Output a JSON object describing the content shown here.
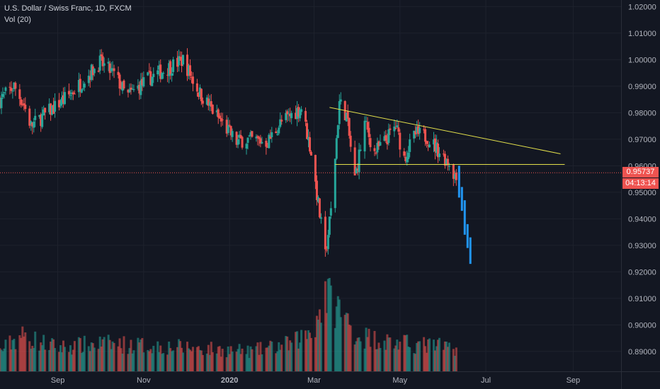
{
  "header": {
    "title": "U.S. Dollar / Swiss Franc, 1D, FXCM",
    "volume_label": "Vol (20)"
  },
  "price_tag": {
    "value": "0.95737",
    "countdown": "04:13:14",
    "color": "#ef5350"
  },
  "colors": {
    "background": "#131722",
    "grid": "#1e222d",
    "up": "#26a69a",
    "down": "#ef5350",
    "projection": "#2196f3",
    "trendline": "#e3e04b",
    "axis_text": "#b2b5be"
  },
  "chart_data": {
    "type": "candlestick",
    "title": "U.S. Dollar / Swiss Franc, 1D, FXCM",
    "ylim": [
      0.8825,
      1.0225
    ],
    "y_ticks": [
      "1.02000",
      "1.01000",
      "1.00000",
      "0.99000",
      "0.98000",
      "0.97000",
      "0.96000",
      "0.95000",
      "0.94000",
      "0.93000",
      "0.92000",
      "0.91000",
      "0.90000",
      "0.89000"
    ],
    "x_ticks": [
      {
        "label": "Sep",
        "date": "2019-09-01"
      },
      {
        "label": "Nov",
        "date": "2019-11-01"
      },
      {
        "label": "2020",
        "date": "2020-01-01"
      },
      {
        "label": "Mar",
        "date": "2020-03-01"
      },
      {
        "label": "May",
        "date": "2020-05-01"
      },
      {
        "label": "Jul",
        "date": "2020-07-01"
      },
      {
        "label": "Sep",
        "date": "2020-09-01"
      }
    ],
    "xlim": [
      "2019-07-22",
      "2020-10-05"
    ],
    "price_key_points": [
      {
        "date": "2019-07-22",
        "close": 0.985
      },
      {
        "date": "2019-08-01",
        "close": 0.99
      },
      {
        "date": "2019-08-08",
        "close": 0.983
      },
      {
        "date": "2019-08-13",
        "close": 0.975
      },
      {
        "date": "2019-08-27",
        "close": 0.981
      },
      {
        "date": "2019-09-10",
        "close": 0.987
      },
      {
        "date": "2019-10-01",
        "close": 0.999
      },
      {
        "date": "2019-10-12",
        "close": 0.994
      },
      {
        "date": "2019-10-20",
        "close": 0.986
      },
      {
        "date": "2019-11-05",
        "close": 0.993
      },
      {
        "date": "2019-11-29",
        "close": 1.0
      },
      {
        "date": "2019-12-10",
        "close": 0.988
      },
      {
        "date": "2019-12-24",
        "close": 0.978
      },
      {
        "date": "2020-01-06",
        "close": 0.969
      },
      {
        "date": "2020-01-12",
        "close": 0.97
      },
      {
        "date": "2020-01-28",
        "close": 0.969
      },
      {
        "date": "2020-02-06",
        "close": 0.976
      },
      {
        "date": "2020-02-21",
        "close": 0.982
      },
      {
        "date": "2020-02-28",
        "close": 0.965
      },
      {
        "date": "2020-03-09",
        "close": 0.926
      },
      {
        "date": "2020-03-13",
        "close": 0.943
      },
      {
        "date": "2020-03-19",
        "close": 0.984
      },
      {
        "date": "2020-03-24",
        "close": 0.979
      },
      {
        "date": "2020-03-30",
        "close": 0.955
      },
      {
        "date": "2020-04-06",
        "close": 0.976
      },
      {
        "date": "2020-04-13",
        "close": 0.965
      },
      {
        "date": "2020-04-20",
        "close": 0.969
      },
      {
        "date": "2020-04-28",
        "close": 0.975
      },
      {
        "date": "2020-05-04",
        "close": 0.963
      },
      {
        "date": "2020-05-12",
        "close": 0.972
      },
      {
        "date": "2020-05-20",
        "close": 0.971
      },
      {
        "date": "2020-05-28",
        "close": 0.966
      },
      {
        "date": "2020-06-05",
        "close": 0.961
      },
      {
        "date": "2020-06-10",
        "close": 0.955
      }
    ],
    "current_price": 0.95737,
    "projection": [
      {
        "date": "2020-06-10",
        "value": 0.958
      },
      {
        "date": "2020-06-12",
        "value": 0.95
      },
      {
        "date": "2020-06-14",
        "value": 0.945
      },
      {
        "date": "2020-06-16",
        "value": 0.936
      },
      {
        "date": "2020-06-18",
        "value": 0.931
      },
      {
        "date": "2020-06-20",
        "value": 0.925
      }
    ],
    "trendlines": [
      {
        "name": "descending resistance",
        "start": {
          "date": "2020-03-12",
          "value": 0.982
        },
        "end": {
          "date": "2020-08-23",
          "value": 0.9645
        }
      },
      {
        "name": "horizontal support",
        "start": {
          "date": "2020-03-16",
          "value": 0.9605
        },
        "end": {
          "date": "2020-08-26",
          "value": 0.9605
        }
      }
    ],
    "volume": {
      "label": "Vol (20)",
      "key_points": [
        {
          "date": "2019-07-22",
          "value": 0.25
        },
        {
          "date": "2019-08-05",
          "value": 0.45
        },
        {
          "date": "2019-09-01",
          "value": 0.3
        },
        {
          "date": "2019-10-01",
          "value": 0.35
        },
        {
          "date": "2019-12-01",
          "value": 0.3
        },
        {
          "date": "2020-01-15",
          "value": 0.25
        },
        {
          "date": "2020-02-15",
          "value": 0.35
        },
        {
          "date": "2020-03-01",
          "value": 0.55
        },
        {
          "date": "2020-03-09",
          "value": 1.0
        },
        {
          "date": "2020-03-20",
          "value": 0.75
        },
        {
          "date": "2020-04-01",
          "value": 0.45
        },
        {
          "date": "2020-05-01",
          "value": 0.35
        },
        {
          "date": "2020-06-10",
          "value": 0.3
        }
      ]
    },
    "grid": true
  }
}
